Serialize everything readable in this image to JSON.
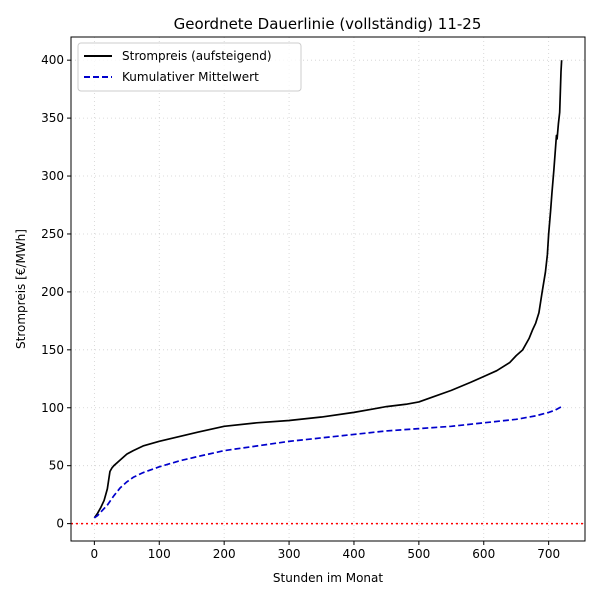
{
  "chart_data": {
    "type": "line",
    "title": "Geordnete Dauerlinie (vollständig) 11-25",
    "xlabel": "Stunden im Monat",
    "ylabel": "Strompreis [€/MWh]",
    "xlim": [
      -36,
      756
    ],
    "ylim": [
      -15,
      420
    ],
    "xticks": [
      0,
      100,
      200,
      300,
      400,
      500,
      600,
      700
    ],
    "yticks": [
      0,
      50,
      100,
      150,
      200,
      250,
      300,
      350,
      400
    ],
    "grid": true,
    "legend_position": "upper-left",
    "series": [
      {
        "name": "Strompreis (aufsteigend)",
        "style": "solid",
        "color": "#000000",
        "x": [
          0,
          5,
          10,
          15,
          20,
          24,
          27,
          30,
          40,
          50,
          60,
          75,
          100,
          130,
          160,
          200,
          250,
          300,
          350,
          400,
          430,
          450,
          480,
          500,
          520,
          550,
          580,
          600,
          620,
          640,
          650,
          660,
          670,
          675,
          680,
          685,
          690,
          695,
          698,
          700,
          703,
          705,
          708,
          710,
          712,
          713,
          715,
          717,
          719,
          720
        ],
        "y": [
          5,
          9,
          14,
          20,
          30,
          45,
          48,
          50,
          55,
          60,
          63,
          67,
          71,
          75,
          79,
          84,
          87,
          89,
          92,
          96,
          99,
          101,
          103,
          105,
          109,
          115,
          122,
          127,
          132,
          139,
          145,
          150,
          160,
          167,
          173,
          182,
          200,
          217,
          232,
          250,
          270,
          285,
          305,
          320,
          335,
          332,
          345,
          355,
          390,
          400
        ]
      },
      {
        "name": "Kumulativer Mittelwert",
        "style": "dashed",
        "color": "#0000cc",
        "x": [
          0,
          5,
          10,
          20,
          30,
          40,
          50,
          60,
          75,
          100,
          130,
          160,
          200,
          250,
          300,
          350,
          400,
          450,
          500,
          550,
          600,
          650,
          680,
          700,
          710,
          720
        ],
        "y": [
          5,
          7,
          10,
          16,
          24,
          31,
          36,
          40,
          44,
          49,
          54,
          58,
          63,
          67,
          71,
          74,
          77,
          80,
          82,
          84,
          87,
          90,
          93,
          96,
          98,
          101
        ]
      }
    ],
    "reference_lines": [
      {
        "axis": "y",
        "value": 0,
        "style": "dotted",
        "color": "#ff0000"
      }
    ]
  }
}
